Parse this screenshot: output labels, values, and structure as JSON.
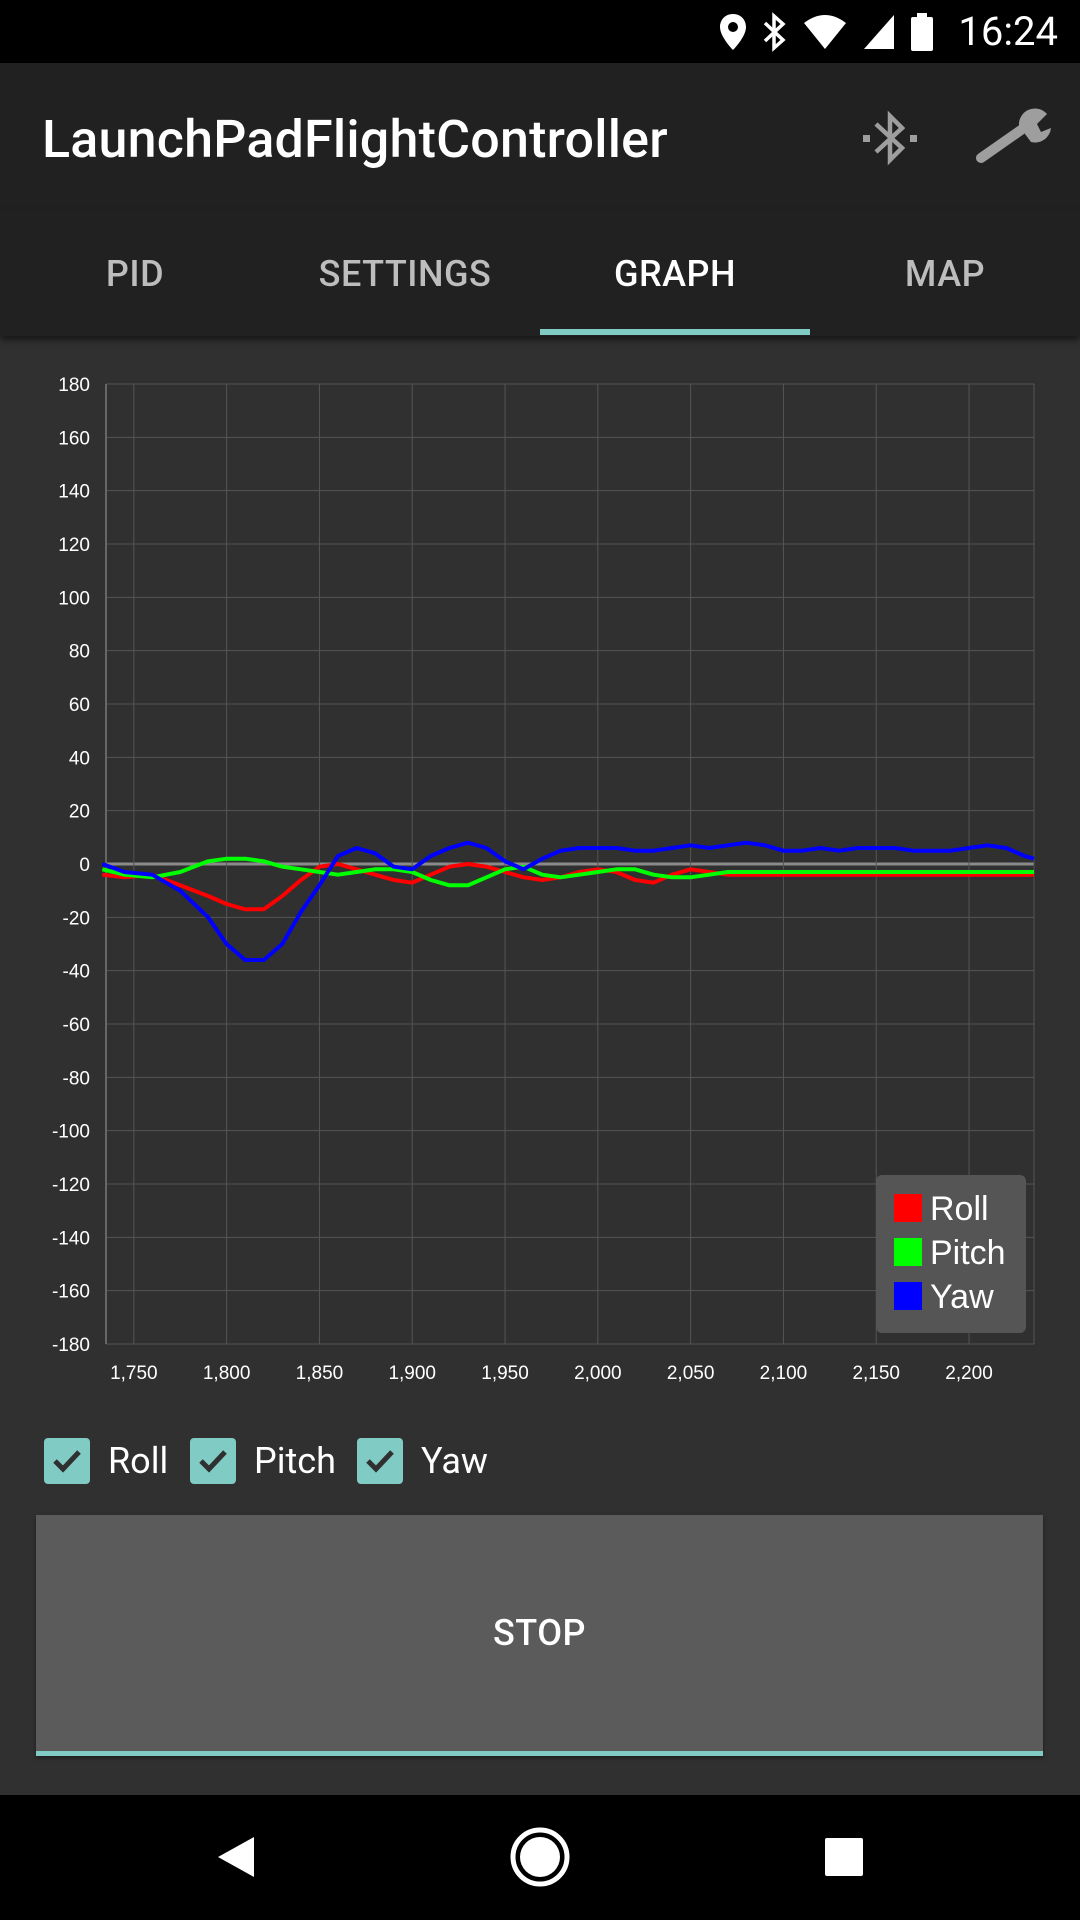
{
  "status_bar": {
    "time": "16:24"
  },
  "app_bar": {
    "title": "LaunchPadFlightController"
  },
  "tabs": [
    {
      "label": "PID",
      "active": false
    },
    {
      "label": "SETTINGS",
      "active": false
    },
    {
      "label": "GRAPH",
      "active": true
    },
    {
      "label": "MAP",
      "active": false
    }
  ],
  "checkboxes": [
    {
      "label": "Roll",
      "checked": true
    },
    {
      "label": "Pitch",
      "checked": true
    },
    {
      "label": "Yaw",
      "checked": true
    }
  ],
  "stop_button": {
    "label": "STOP"
  },
  "colors": {
    "accent": "#80cbc4",
    "roll": "#ff0000",
    "pitch": "#00ff00",
    "yaw": "#0000ff"
  },
  "chart_data": {
    "type": "line",
    "grid": true,
    "legend_position": "bottom-right",
    "xlim": [
      1735,
      2235
    ],
    "ylim": [
      -180,
      180
    ],
    "xticks": [
      "1,750",
      "1,800",
      "1,850",
      "1,900",
      "1,950",
      "2,000",
      "2,050",
      "2,100",
      "2,150",
      "2,200"
    ],
    "xtick_values": [
      1750,
      1800,
      1850,
      1900,
      1950,
      2000,
      2050,
      2100,
      2150,
      2200
    ],
    "yticks": [
      180,
      160,
      140,
      120,
      100,
      80,
      60,
      40,
      20,
      0,
      -20,
      -40,
      -60,
      -80,
      -100,
      -120,
      -140,
      -160,
      -180
    ],
    "series": [
      {
        "name": "Roll",
        "color": "#ff0000",
        "x": [
          1733,
          1745,
          1760,
          1775,
          1790,
          1800,
          1810,
          1820,
          1830,
          1840,
          1850,
          1860,
          1870,
          1880,
          1890,
          1900,
          1910,
          1920,
          1930,
          1940,
          1950,
          1960,
          1970,
          1980,
          1990,
          2000,
          2010,
          2020,
          2030,
          2040,
          2050,
          2060,
          2070,
          2080,
          2100,
          2150,
          2200,
          2235
        ],
        "y": [
          -4,
          -5,
          -4,
          -8,
          -12,
          -15,
          -17,
          -17,
          -12,
          -6,
          -1,
          0,
          -2,
          -4,
          -6,
          -7,
          -4,
          -1,
          0,
          -1,
          -3,
          -5,
          -6,
          -5,
          -3,
          -2,
          -3,
          -6,
          -7,
          -4,
          -2,
          -3,
          -4,
          -4,
          -4,
          -4,
          -4,
          -4
        ]
      },
      {
        "name": "Pitch",
        "color": "#00ff00",
        "x": [
          1733,
          1745,
          1760,
          1775,
          1790,
          1800,
          1810,
          1820,
          1830,
          1840,
          1850,
          1860,
          1870,
          1880,
          1890,
          1900,
          1910,
          1920,
          1930,
          1940,
          1950,
          1960,
          1970,
          1980,
          1990,
          2000,
          2010,
          2020,
          2030,
          2040,
          2050,
          2060,
          2070,
          2080,
          2100,
          2150,
          2200,
          2235
        ],
        "y": [
          -2,
          -4,
          -5,
          -3,
          1,
          2,
          2,
          1,
          -1,
          -2,
          -3,
          -4,
          -3,
          -2,
          -2,
          -3,
          -6,
          -8,
          -8,
          -5,
          -2,
          -1,
          -4,
          -5,
          -4,
          -3,
          -2,
          -2,
          -4,
          -5,
          -5,
          -4,
          -3,
          -3,
          -3,
          -3,
          -3,
          -3
        ]
      },
      {
        "name": "Yaw",
        "color": "#0000ff",
        "x": [
          1733,
          1745,
          1760,
          1775,
          1790,
          1800,
          1810,
          1820,
          1830,
          1840,
          1850,
          1860,
          1870,
          1880,
          1890,
          1900,
          1910,
          1920,
          1930,
          1940,
          1950,
          1960,
          1970,
          1980,
          1990,
          2000,
          2010,
          2020,
          2030,
          2040,
          2050,
          2060,
          2070,
          2080,
          2090,
          2100,
          2110,
          2120,
          2130,
          2140,
          2150,
          2160,
          2170,
          2180,
          2190,
          2200,
          2210,
          2220,
          2230,
          2235
        ],
        "y": [
          0,
          -3,
          -4,
          -10,
          -20,
          -30,
          -36,
          -36,
          -30,
          -18,
          -8,
          3,
          6,
          4,
          -1,
          -2,
          3,
          6,
          8,
          6,
          1,
          -2,
          2,
          5,
          6,
          6,
          6,
          5,
          5,
          6,
          7,
          6,
          7,
          8,
          7,
          5,
          5,
          6,
          5,
          6,
          6,
          6,
          5,
          5,
          5,
          6,
          7,
          6,
          3,
          2
        ]
      }
    ]
  }
}
